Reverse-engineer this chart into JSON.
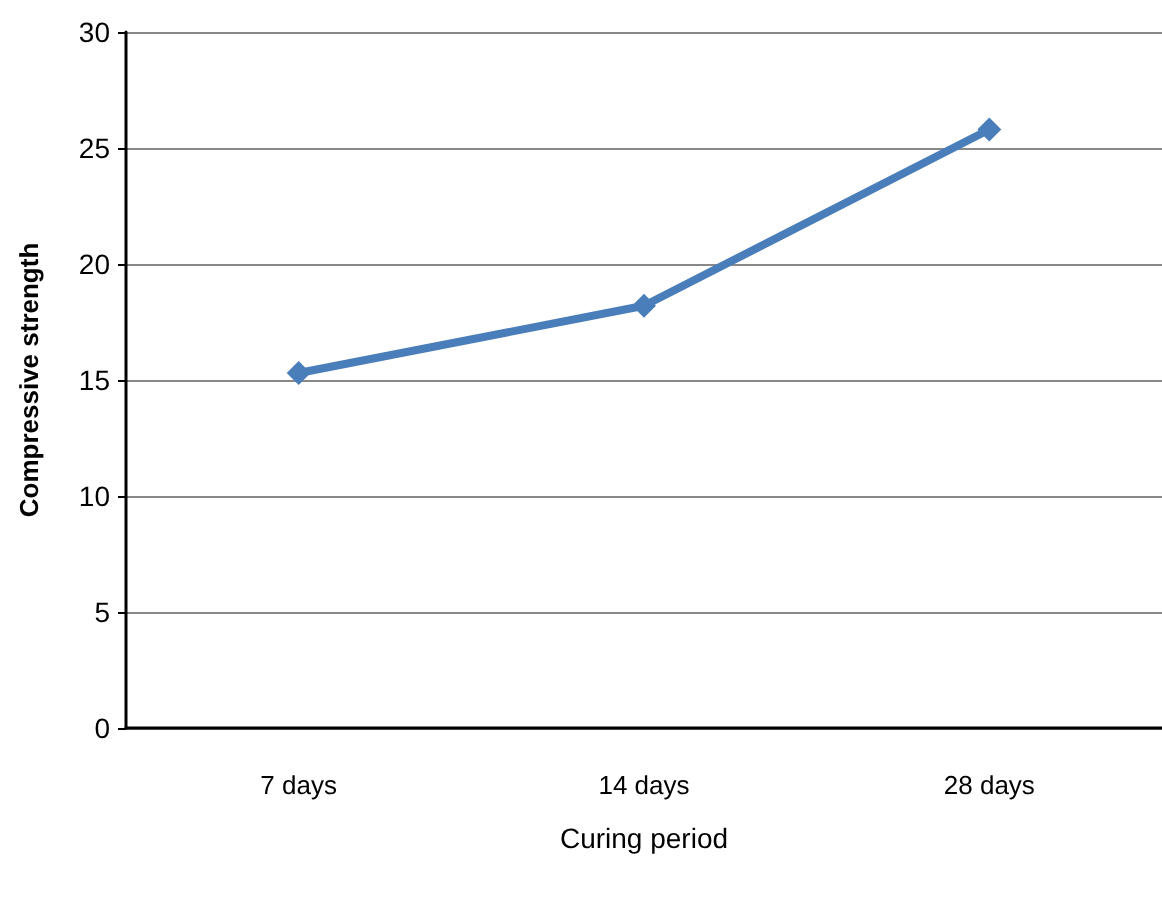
{
  "chart_data": {
    "type": "line",
    "xlabel": "Curing period",
    "ylabel": "Compressive strength",
    "categories": [
      "7 days",
      "14 days",
      "28 days"
    ],
    "series": [
      {
        "color": "#4a7ebb",
        "values": [
          15.3,
          18.2,
          25.8
        ]
      }
    ],
    "ylim": [
      0,
      30
    ],
    "yticks": [
      0,
      5,
      10,
      15,
      20,
      25,
      30
    ],
    "grid": "y",
    "marker": "diamond",
    "line_style": "solid"
  }
}
